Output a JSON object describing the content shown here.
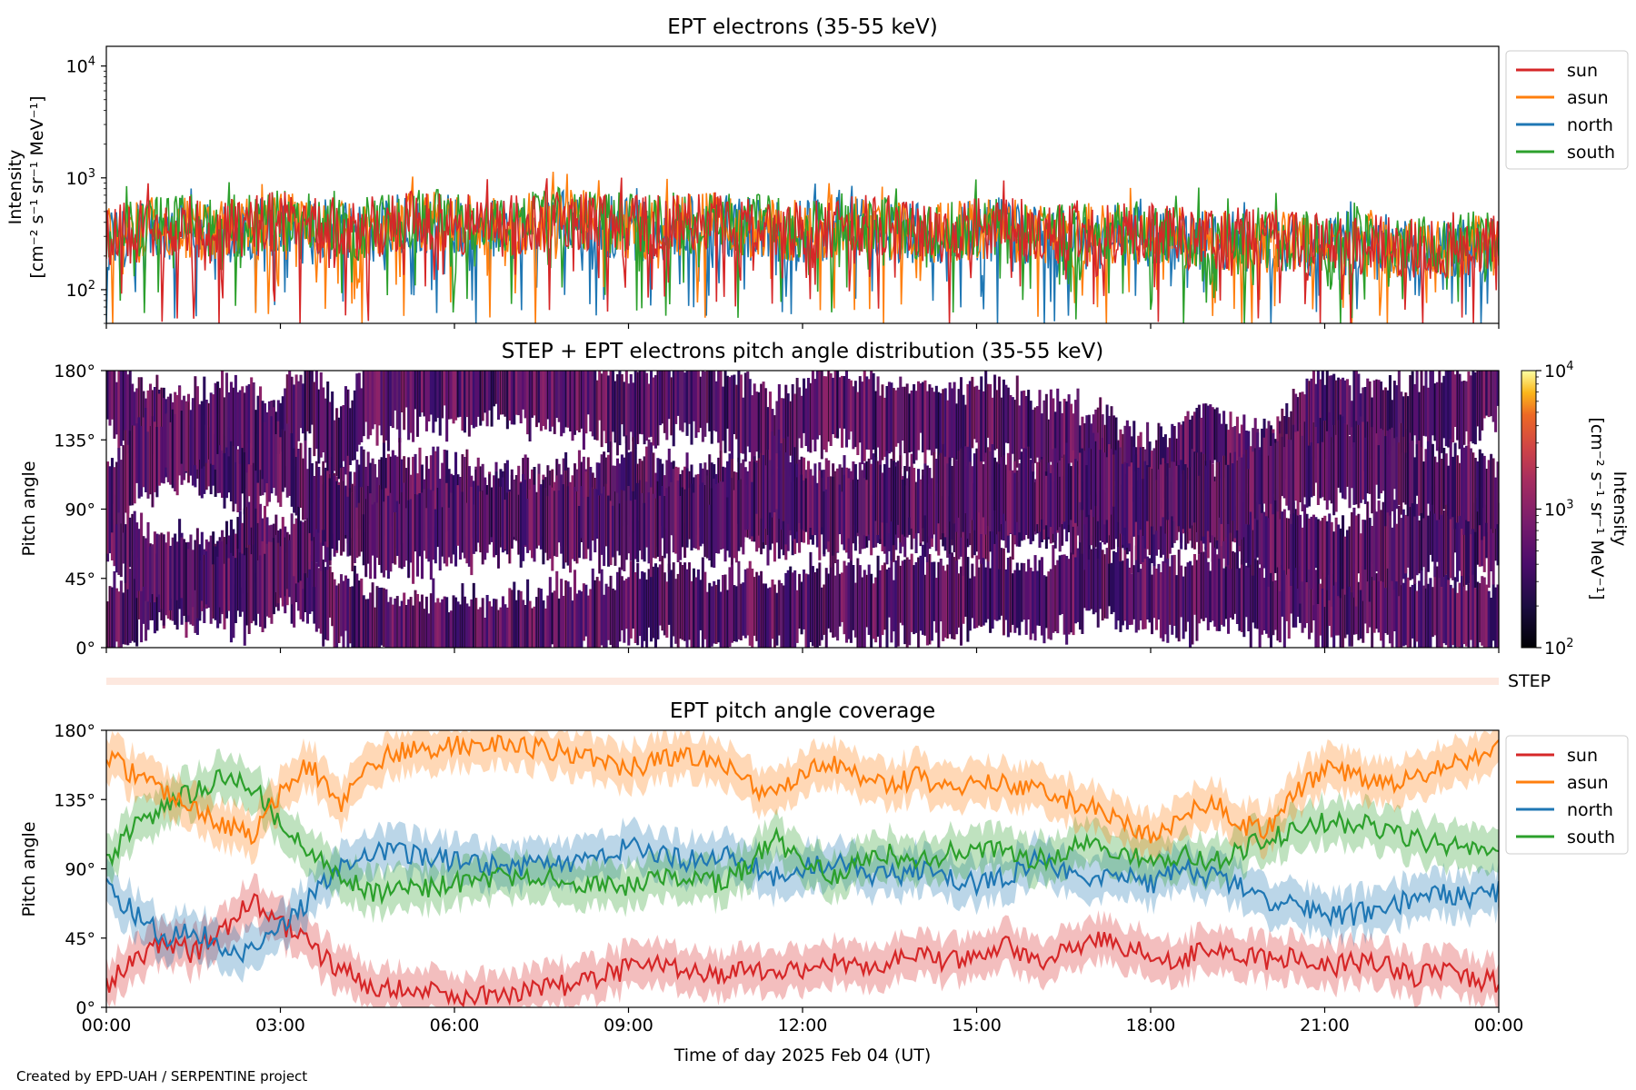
{
  "figure": {
    "credit": "Created by EPD-UAH / SERPENTINE project",
    "xlabel": "Time of day 2025 Feb 04 (UT)",
    "x_ticks": [
      "00:00",
      "03:00",
      "06:00",
      "09:00",
      "12:00",
      "15:00",
      "18:00",
      "21:00",
      "00:00"
    ]
  },
  "chart_data": [
    {
      "type": "line",
      "title": "EPT electrons (35-55 keV)",
      "ylabel_line1": "Intensity",
      "ylabel_line2": "[cm⁻² s⁻¹ sr⁻¹ MeV⁻¹]",
      "yscale": "log",
      "ylim": [
        50,
        15000
      ],
      "y_ticks": [
        {
          "value": 100,
          "base": "10",
          "exp": "2"
        },
        {
          "value": 1000,
          "base": "10",
          "exp": "3"
        },
        {
          "value": 10000,
          "base": "10",
          "exp": "4"
        }
      ],
      "x_range_hours": [
        0,
        24
      ],
      "legend_position": "outside-top-right",
      "series": [
        {
          "name": "sun",
          "color": "#d62728",
          "typical": [
            300,
            340,
            380,
            320,
            360,
            410,
            370,
            330,
            390,
            420,
            380,
            350,
            400,
            430,
            390,
            360,
            380,
            410,
            370,
            340,
            360,
            390,
            350,
            330,
            340,
            370,
            320,
            300,
            310,
            330,
            300,
            280,
            290,
            270,
            260,
            250,
            240,
            230,
            250,
            260
          ]
        },
        {
          "name": "asun",
          "color": "#ff7f0e",
          "typical": [
            290,
            330,
            370,
            330,
            350,
            400,
            360,
            320,
            380,
            410,
            370,
            340,
            390,
            420,
            380,
            350,
            370,
            400,
            360,
            330,
            350,
            380,
            340,
            320,
            330,
            360,
            310,
            290,
            300,
            320,
            290,
            270,
            280,
            260,
            250,
            240,
            230,
            220,
            240,
            250
          ]
        },
        {
          "name": "north",
          "color": "#1f77b4",
          "typical": [
            280,
            320,
            360,
            310,
            350,
            390,
            350,
            310,
            370,
            400,
            360,
            330,
            380,
            410,
            370,
            340,
            360,
            390,
            350,
            320,
            340,
            370,
            330,
            310,
            320,
            350,
            300,
            280,
            290,
            310,
            280,
            260,
            270,
            250,
            240,
            230,
            220,
            210,
            230,
            240
          ]
        },
        {
          "name": "south",
          "color": "#2ca02c",
          "typical": [
            310,
            350,
            390,
            340,
            370,
            420,
            380,
            340,
            400,
            430,
            390,
            360,
            410,
            440,
            400,
            370,
            390,
            420,
            380,
            350,
            370,
            400,
            360,
            340,
            350,
            380,
            330,
            310,
            320,
            340,
            310,
            290,
            300,
            280,
            270,
            260,
            250,
            240,
            260,
            270
          ]
        }
      ]
    },
    {
      "type": "heatmap",
      "title": "STEP + EPT electrons pitch angle distribution (35-55 keV)",
      "ylabel": "Pitch angle",
      "ylim": [
        0,
        180
      ],
      "y_ticks": [
        "0°",
        "45°",
        "90°",
        "135°",
        "180°"
      ],
      "x_range_hours": [
        0,
        24
      ],
      "colormap": "inferno",
      "colorbar": {
        "label_line1": "Intensity",
        "label_line2": "[cm⁻² s⁻¹ sr⁻¹ MeV⁻¹]",
        "scale": "log",
        "range": [
          100,
          10000
        ],
        "ticks": [
          {
            "value": 100,
            "base": "10",
            "exp": "2"
          },
          {
            "value": 1000,
            "base": "10",
            "exp": "3"
          },
          {
            "value": 10000,
            "base": "10",
            "exp": "4"
          }
        ]
      },
      "typical_intensity": 300
    },
    {
      "type": "bar",
      "label": "STEP",
      "color": "#fde8df"
    },
    {
      "type": "line",
      "title": "EPT pitch angle coverage",
      "ylabel": "Pitch angle",
      "ylim": [
        0,
        180
      ],
      "y_ticks": [
        "0°",
        "45°",
        "90°",
        "135°",
        "180°"
      ],
      "x_range_hours": [
        0,
        24
      ],
      "band_halfwidth_deg": 14,
      "legend_position": "outside-top-right",
      "x_hours": [
        0,
        0.5,
        1,
        1.5,
        2,
        2.5,
        3,
        3.5,
        4,
        4.5,
        5,
        5.5,
        6,
        6.5,
        7,
        7.5,
        8,
        8.5,
        9,
        9.5,
        10,
        10.5,
        11,
        11.5,
        12,
        12.5,
        13,
        13.5,
        14,
        14.5,
        15,
        15.5,
        16,
        16.5,
        17,
        17.5,
        18,
        18.5,
        19,
        19.5,
        20,
        20.5,
        21,
        21.5,
        22,
        22.5,
        23,
        23.5,
        24
      ],
      "series": [
        {
          "name": "sun",
          "color": "#d62728",
          "values": [
            15,
            30,
            45,
            35,
            50,
            70,
            55,
            40,
            25,
            15,
            12,
            10,
            8,
            8,
            10,
            12,
            15,
            20,
            25,
            30,
            25,
            20,
            25,
            20,
            25,
            30,
            25,
            30,
            35,
            30,
            35,
            40,
            30,
            35,
            45,
            40,
            35,
            30,
            40,
            35,
            30,
            35,
            25,
            30,
            30,
            20,
            25,
            20,
            15
          ]
        },
        {
          "name": "asun",
          "color": "#ff7f0e",
          "values": [
            165,
            150,
            140,
            130,
            120,
            110,
            140,
            160,
            130,
            160,
            165,
            168,
            170,
            172,
            170,
            168,
            165,
            160,
            155,
            160,
            165,
            160,
            150,
            135,
            150,
            160,
            150,
            145,
            150,
            140,
            150,
            145,
            140,
            135,
            130,
            120,
            110,
            120,
            135,
            120,
            115,
            140,
            155,
            150,
            145,
            150,
            155,
            160,
            170
          ]
        },
        {
          "name": "north",
          "color": "#1f77b4",
          "values": [
            80,
            60,
            45,
            50,
            40,
            35,
            50,
            70,
            90,
            100,
            100,
            98,
            95,
            93,
            90,
            92,
            95,
            100,
            105,
            100,
            95,
            100,
            95,
            85,
            90,
            95,
            88,
            85,
            90,
            85,
            80,
            85,
            95,
            90,
            80,
            85,
            80,
            90,
            85,
            80,
            70,
            65,
            60,
            60,
            65,
            70,
            75,
            70,
            75
          ]
        },
        {
          "name": "south",
          "color": "#2ca02c",
          "values": [
            95,
            120,
            130,
            140,
            150,
            145,
            120,
            100,
            85,
            75,
            75,
            78,
            80,
            83,
            85,
            85,
            82,
            80,
            78,
            82,
            85,
            80,
            90,
            110,
            95,
            85,
            95,
            100,
            95,
            100,
            105,
            100,
            95,
            100,
            110,
            100,
            95,
            100,
            95,
            100,
            110,
            115,
            120,
            120,
            115,
            110,
            105,
            105,
            100
          ]
        }
      ]
    }
  ]
}
